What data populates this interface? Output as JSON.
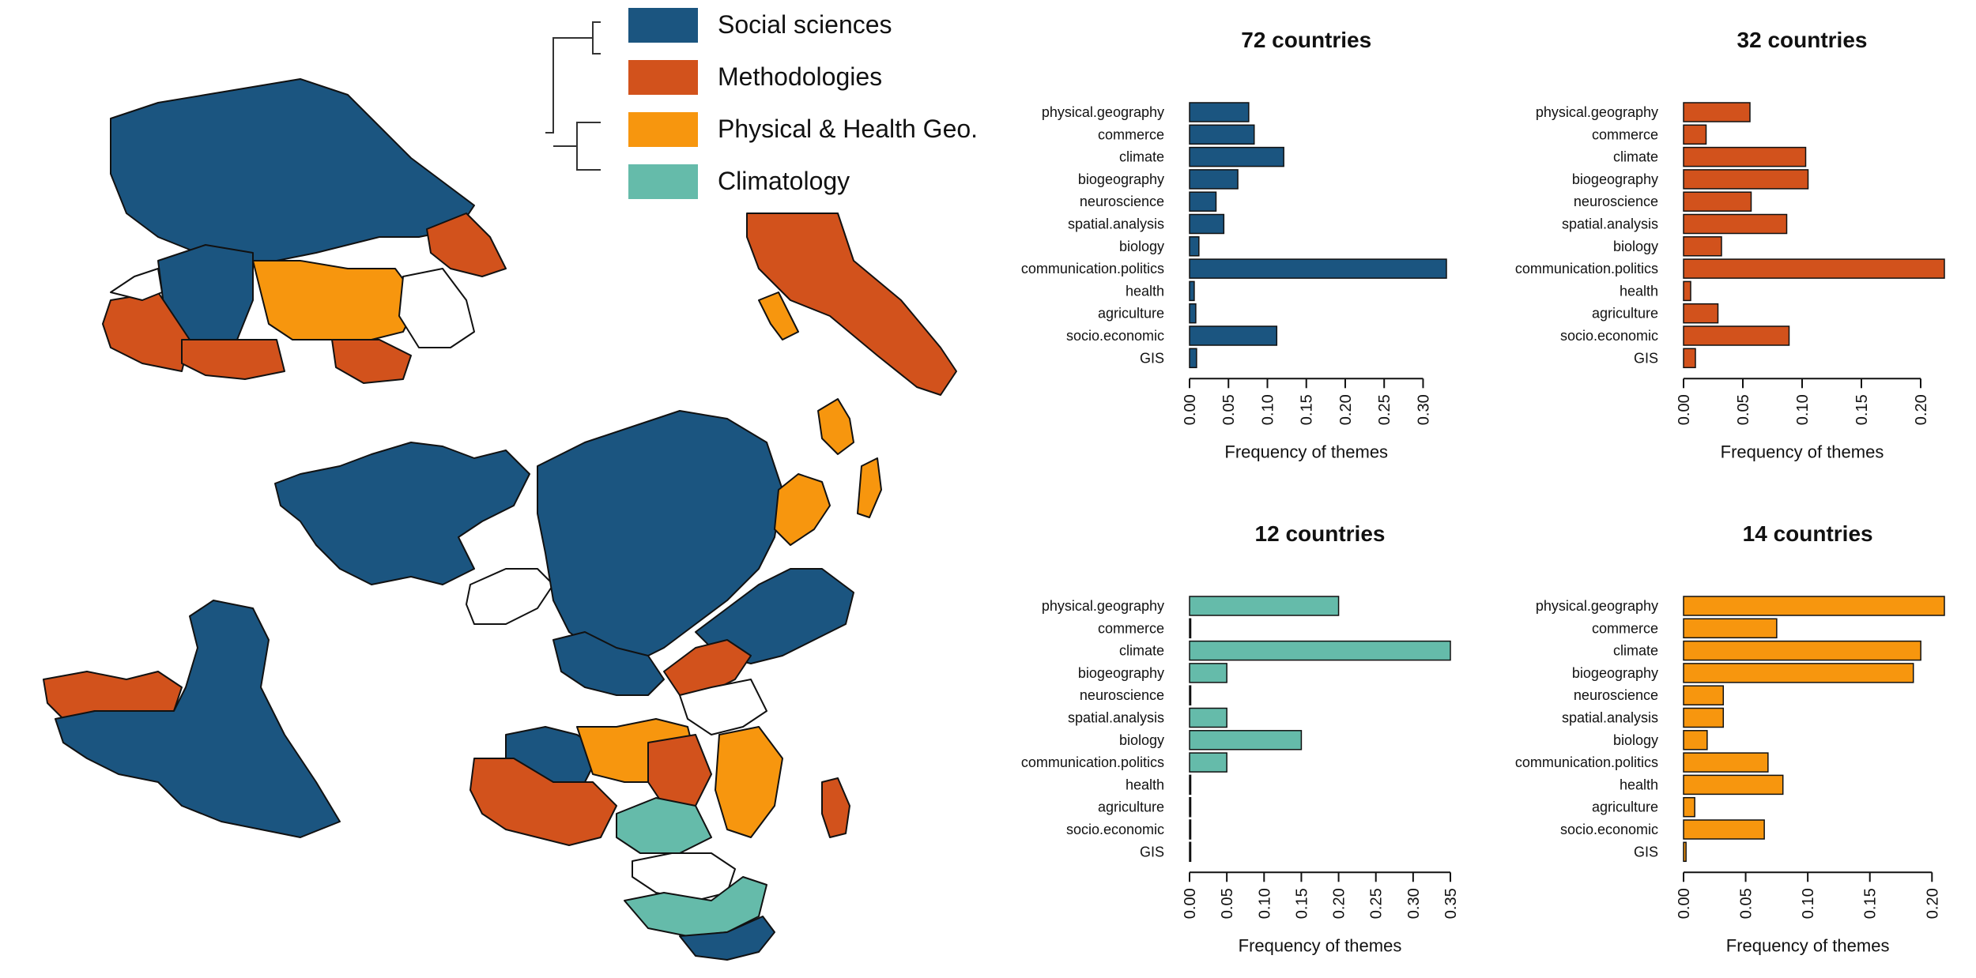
{
  "colors": {
    "social": "#1b5580",
    "methods": "#d2521c",
    "physical": "#f7960e",
    "climatology": "#65bbaa",
    "country_outline": "#111111",
    "none": "#ffffff"
  },
  "legend": {
    "items": [
      {
        "label": "Social sciences",
        "color_key": "social"
      },
      {
        "label": "Methodologies",
        "color_key": "methods"
      },
      {
        "label": "Physical & Health Geo.",
        "color_key": "physical"
      },
      {
        "label": "Climatology",
        "color_key": "climatology"
      }
    ]
  },
  "map": {
    "regions_icons": [
      "world-map-icon",
      "europe-inset-map-icon",
      "dendrogram-icon"
    ]
  },
  "chart_data": [
    {
      "type": "bar",
      "orientation": "horizontal",
      "title": "72 countries",
      "xlabel": "Frequency of themes",
      "color_key": "social",
      "categories": [
        "physical.geography",
        "commerce",
        "climate",
        "biogeography",
        "neuroscience",
        "spatial.analysis",
        "biology",
        "communication.politics",
        "health",
        "agriculture",
        "socio.economic",
        "GIS"
      ],
      "values": [
        0.076,
        0.083,
        0.121,
        0.062,
        0.034,
        0.044,
        0.012,
        0.33,
        0.006,
        0.008,
        0.112,
        0.009
      ],
      "xlim": [
        0,
        0.33
      ],
      "ticks": [
        0.0,
        0.05,
        0.1,
        0.15,
        0.2,
        0.25,
        0.3
      ],
      "tick_labels": [
        "0.00",
        "0.05",
        "0.10",
        "0.15",
        "0.20",
        "0.25",
        "0.30"
      ]
    },
    {
      "type": "bar",
      "orientation": "horizontal",
      "title": "32 countries",
      "xlabel": "Frequency of themes",
      "color_key": "methods",
      "categories": [
        "physical.geography",
        "commerce",
        "climate",
        "biogeography",
        "neuroscience",
        "spatial.analysis",
        "biology",
        "communication.politics",
        "health",
        "agriculture",
        "socio.economic",
        "GIS"
      ],
      "values": [
        0.056,
        0.019,
        0.103,
        0.105,
        0.057,
        0.087,
        0.032,
        0.22,
        0.006,
        0.029,
        0.089,
        0.01
      ],
      "xlim": [
        0,
        0.22
      ],
      "ticks": [
        0.0,
        0.05,
        0.1,
        0.15,
        0.2
      ],
      "tick_labels": [
        "0.00",
        "0.05",
        "0.10",
        "0.15",
        "0.20"
      ]
    },
    {
      "type": "bar",
      "orientation": "horizontal",
      "title": "12 countries",
      "xlabel": "Frequency of themes",
      "color_key": "climatology",
      "categories": [
        "physical.geography",
        "commerce",
        "climate",
        "biogeography",
        "neuroscience",
        "spatial.analysis",
        "biology",
        "communication.politics",
        "health",
        "agriculture",
        "socio.economic",
        "GIS"
      ],
      "values": [
        0.2,
        0.0,
        0.35,
        0.05,
        0.0,
        0.05,
        0.15,
        0.05,
        0.0,
        0.0,
        0.0,
        0.0
      ],
      "xlim": [
        0,
        0.35
      ],
      "ticks": [
        0.0,
        0.05,
        0.1,
        0.15,
        0.2,
        0.25,
        0.3,
        0.35
      ],
      "tick_labels": [
        "0.00",
        "0.05",
        "0.10",
        "0.15",
        "0.20",
        "0.25",
        "0.30",
        "0.35"
      ]
    },
    {
      "type": "bar",
      "orientation": "horizontal",
      "title": "14 countries",
      "xlabel": "Frequency of themes",
      "color_key": "physical",
      "categories": [
        "physical.geography",
        "commerce",
        "climate",
        "biogeography",
        "neuroscience",
        "spatial.analysis",
        "biology",
        "communication.politics",
        "health",
        "agriculture",
        "socio.economic",
        "GIS"
      ],
      "values": [
        0.21,
        0.075,
        0.191,
        0.185,
        0.032,
        0.032,
        0.019,
        0.068,
        0.08,
        0.009,
        0.065,
        0.002
      ],
      "xlim": [
        0,
        0.21
      ],
      "ticks": [
        0.0,
        0.05,
        0.1,
        0.15,
        0.2
      ],
      "tick_labels": [
        "0.00",
        "0.05",
        "0.10",
        "0.15",
        "0.20"
      ]
    }
  ]
}
